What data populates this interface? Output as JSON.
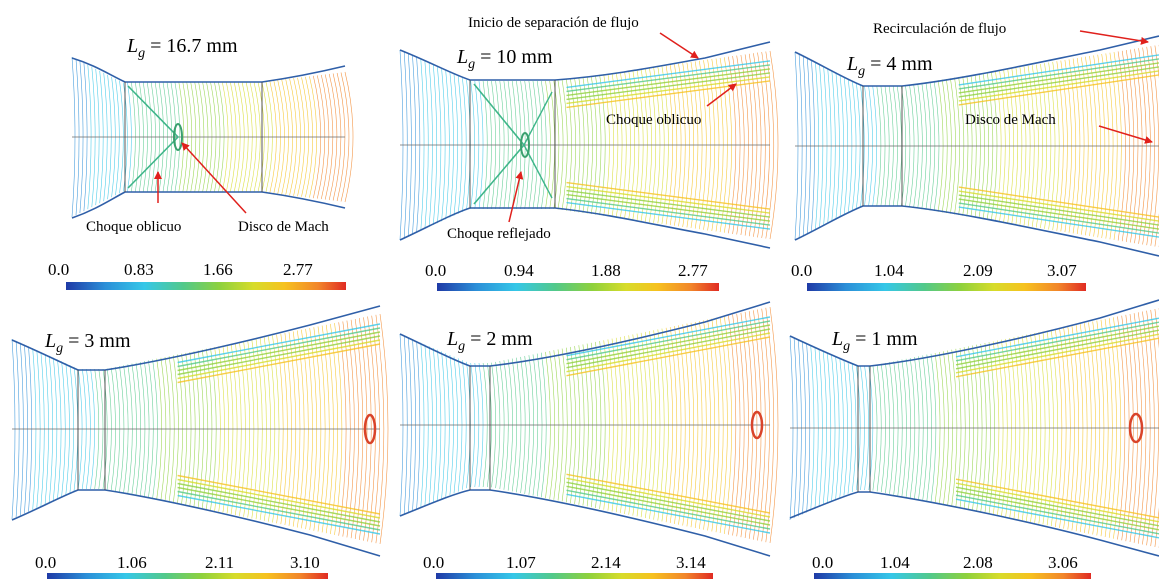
{
  "panels": [
    {
      "id": "p1",
      "lg_value": "16.7",
      "unit": "mm",
      "ticks": [
        "0.0",
        "0.83",
        "1.66",
        "2.77"
      ]
    },
    {
      "id": "p2",
      "lg_value": "10",
      "unit": "mm",
      "ticks": [
        "0.0",
        "0.94",
        "1.88",
        "2.77"
      ]
    },
    {
      "id": "p3",
      "lg_value": "4",
      "unit": "mm",
      "ticks": [
        "0.0",
        "1.04",
        "2.09",
        "3.07"
      ]
    },
    {
      "id": "p4",
      "lg_value": "3",
      "unit": "mm",
      "ticks": [
        "0.0",
        "1.06",
        "2.11",
        "3.10"
      ]
    },
    {
      "id": "p5",
      "lg_value": "2",
      "unit": "mm",
      "ticks": [
        "0.0",
        "1.07",
        "2.14",
        "3.14"
      ]
    },
    {
      "id": "p6",
      "lg_value": "1",
      "unit": "mm",
      "ticks": [
        "0.0",
        "1.04",
        "2.08",
        "3.06"
      ]
    }
  ],
  "labels": {
    "lg_symbol": "L",
    "lg_subscript": "g",
    "equals": "=",
    "oblique_shock": "Choque oblicuo",
    "mach_disk": "Disco de Mach",
    "reflected_shock": "Choque reflejado",
    "separation_onset": "Inicio de separación de flujo",
    "recirculation": "Recirculación de flujo"
  },
  "colors": {
    "colormap": [
      "#1f3aa6",
      "#2b8fd8",
      "#35c7e8",
      "#52c98a",
      "#8ed13d",
      "#d7dc2a",
      "#f6c21f",
      "#f2862a",
      "#e02b23"
    ],
    "annotation_arrow": "#e0201c",
    "axis_line": "#6a6a6a",
    "wall": "#2f5fa8"
  }
}
